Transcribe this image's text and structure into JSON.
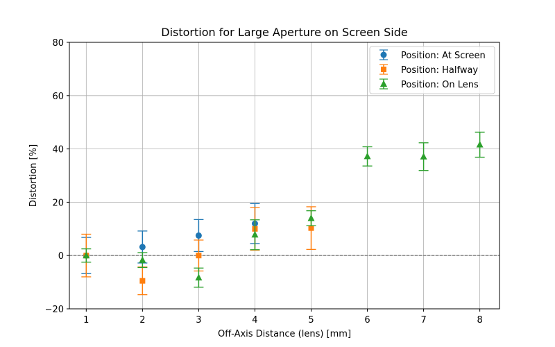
{
  "chart_data": {
    "type": "scatter",
    "title": "Distortion for Large Aperture on Screen Side",
    "xlabel": "Off-Axis Distance (lens) [mm]",
    "ylabel": "Distortion [%]",
    "xlim": [
      0.7,
      8.35
    ],
    "ylim": [
      -20,
      80
    ],
    "xticks": [
      "1",
      "2",
      "3",
      "4",
      "5",
      "6",
      "7",
      "8"
    ],
    "yticks": [
      "−20",
      "0",
      "20",
      "40",
      "60",
      "80"
    ],
    "grid": true,
    "legend_position": "top-right",
    "reference_line": {
      "y": 0,
      "style": "dashed",
      "color": "#808080"
    },
    "series": [
      {
        "name": "Position: At Screen",
        "color": "#1f77b4",
        "marker": "circle",
        "x": [
          1,
          2,
          3,
          4
        ],
        "y": [
          0,
          3.2,
          7.5,
          12
        ],
        "err": [
          6.8,
          6,
          6,
          7.5
        ]
      },
      {
        "name": "Position: Halfway",
        "color": "#ff7f0e",
        "marker": "square",
        "x": [
          1,
          2,
          3,
          4,
          5
        ],
        "y": [
          0,
          -9.5,
          0,
          10,
          10.3
        ],
        "err": [
          8,
          5.2,
          5.8,
          8,
          8
        ]
      },
      {
        "name": "Position: On Lens",
        "color": "#2ca02c",
        "marker": "triangle",
        "x": [
          1,
          2,
          3,
          4,
          5,
          6,
          7,
          8
        ],
        "y": [
          0,
          -1.7,
          -8.3,
          7.8,
          14,
          37.2,
          37.1,
          41.6
        ],
        "err": [
          2.5,
          2.8,
          3.6,
          5.6,
          2.8,
          3.6,
          5.2,
          4.7
        ]
      }
    ]
  }
}
